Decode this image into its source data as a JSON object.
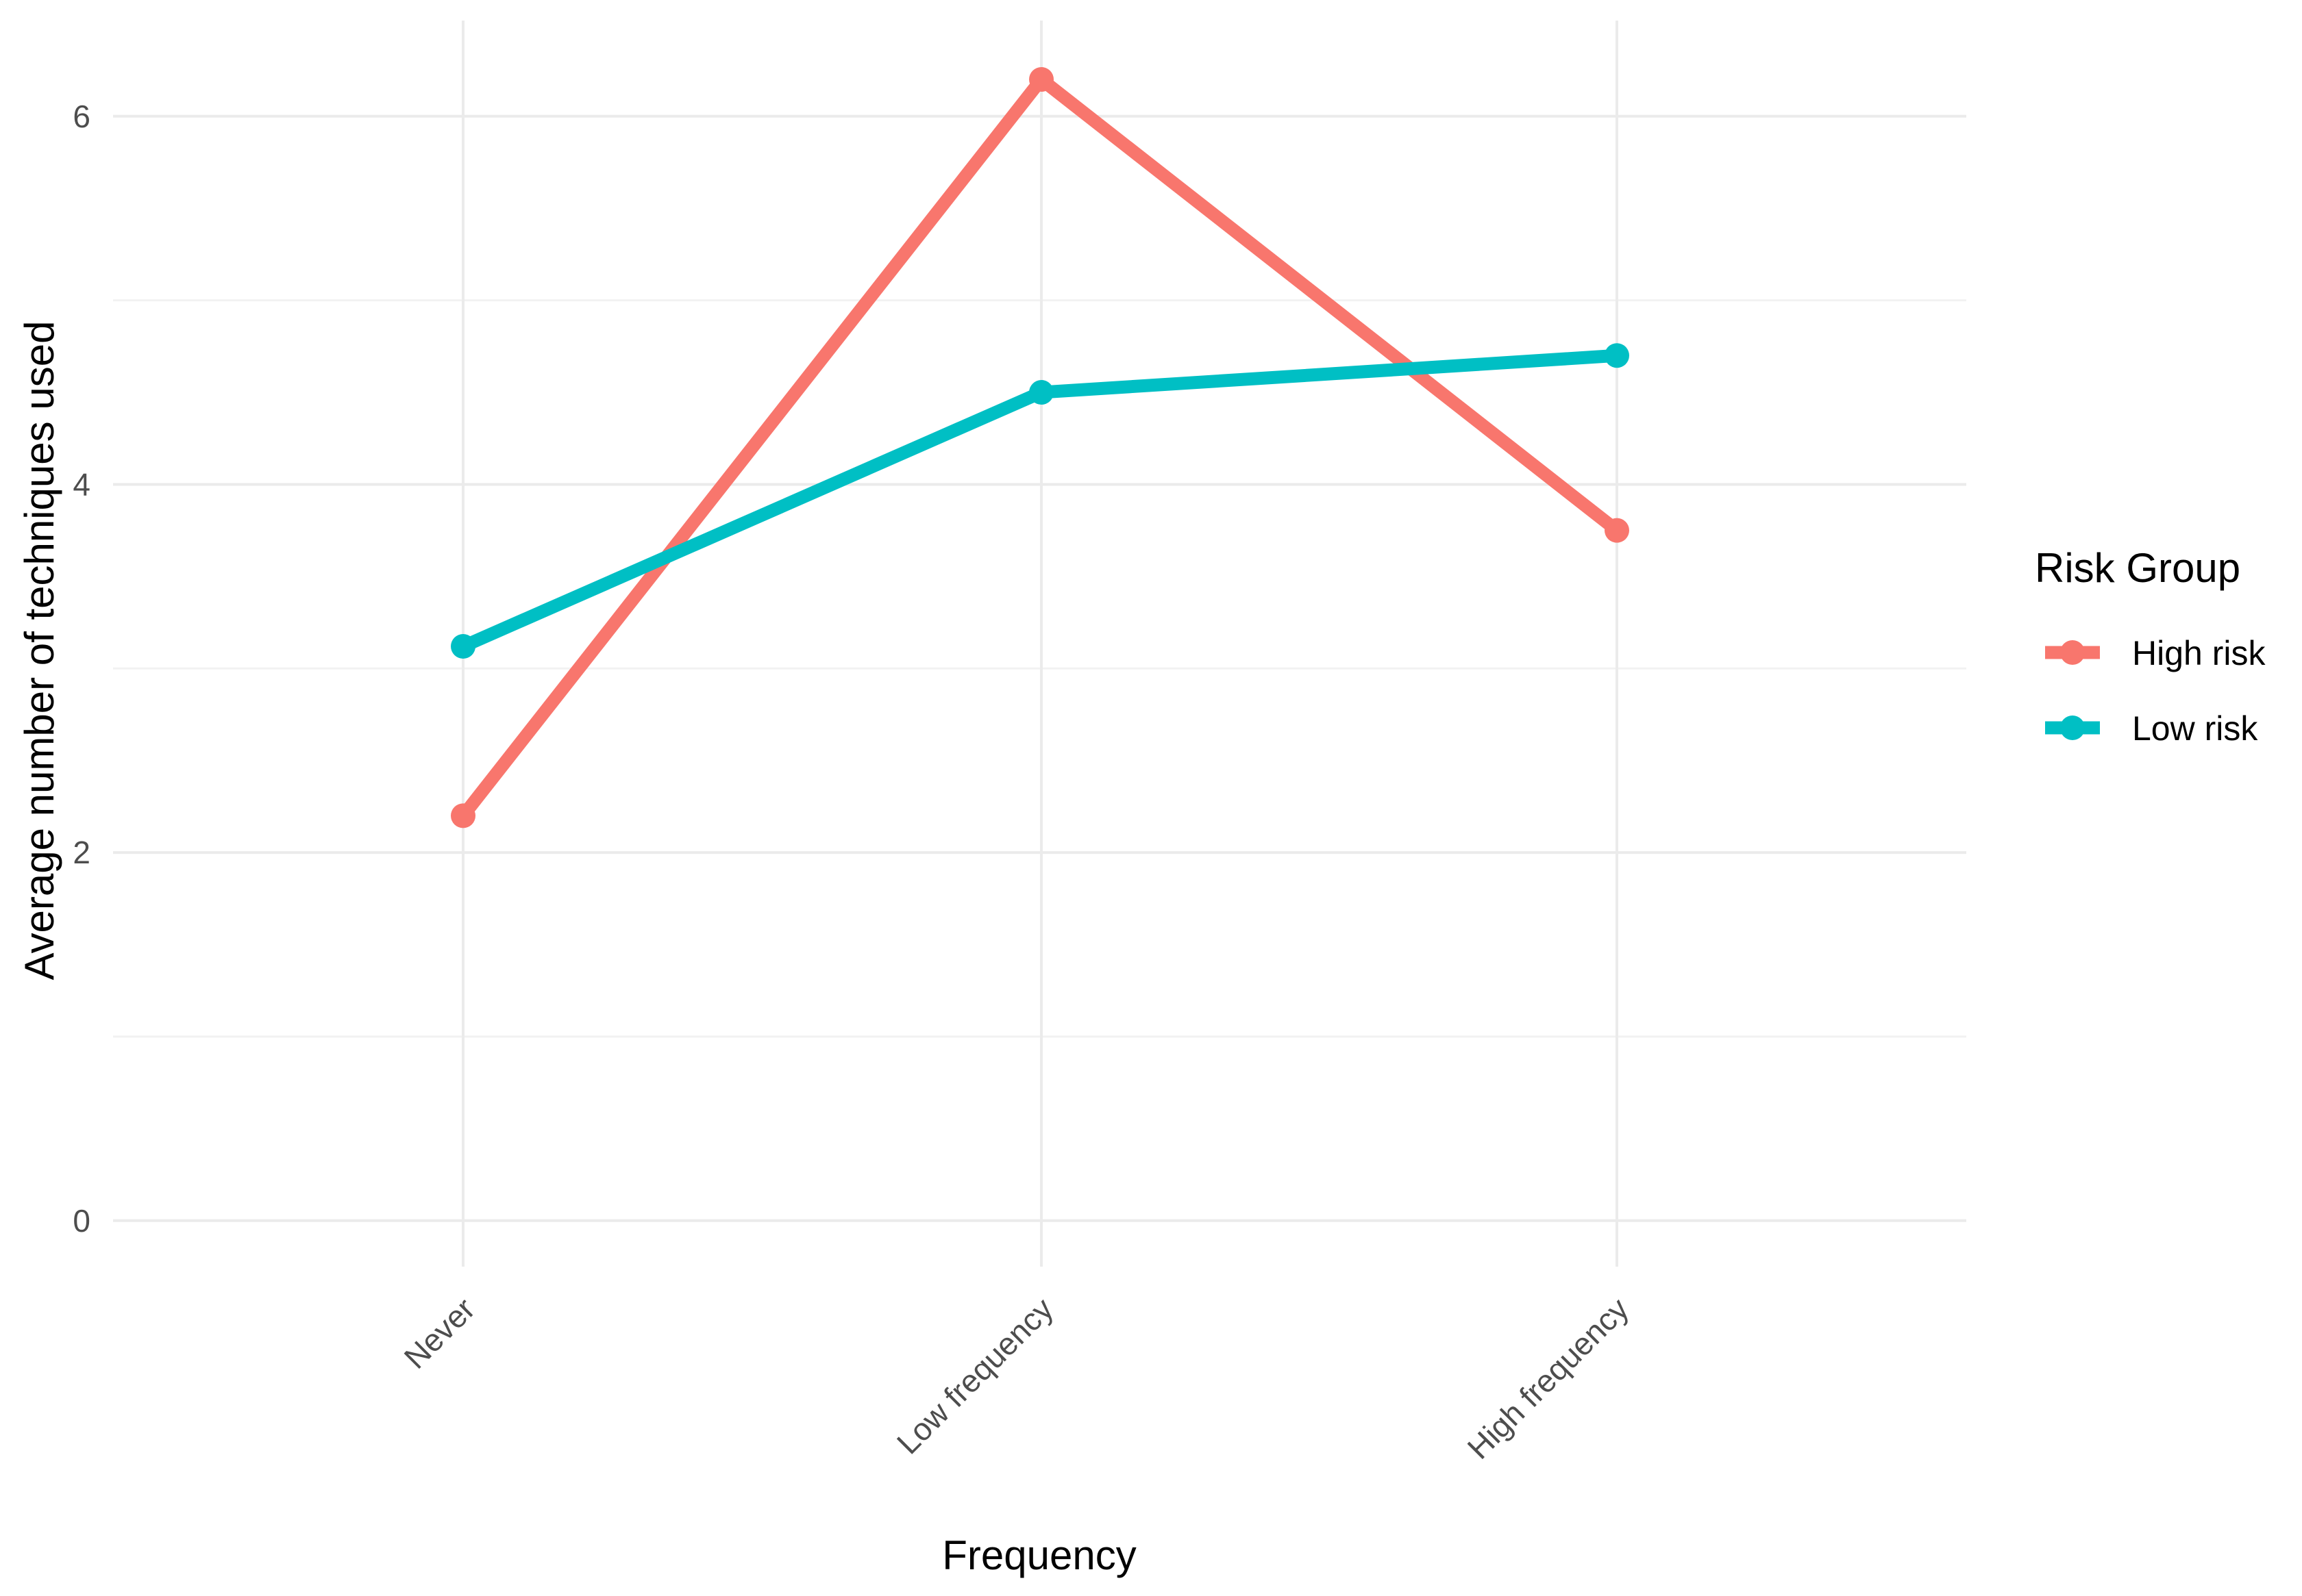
{
  "chart_data": {
    "type": "line",
    "title": "",
    "xlabel": "Frequency",
    "ylabel": "Average number of techniques used",
    "categories": [
      "Never",
      "Low frequency",
      "High frequency"
    ],
    "series": [
      {
        "name": "High risk",
        "color": "#F8766D",
        "values": [
          2.2,
          6.2,
          3.75
        ]
      },
      {
        "name": "Low risk",
        "color": "#00BFC4",
        "values": [
          3.12,
          4.5,
          4.7
        ]
      }
    ],
    "ylim": [
      -0.25,
      6.52
    ],
    "y_ticks": [
      0,
      2,
      4,
      6
    ],
    "y_minor_ticks": [
      1,
      3,
      5
    ],
    "grid": true,
    "legend": {
      "title": "Risk Group",
      "position": "right"
    },
    "markers": true
  }
}
